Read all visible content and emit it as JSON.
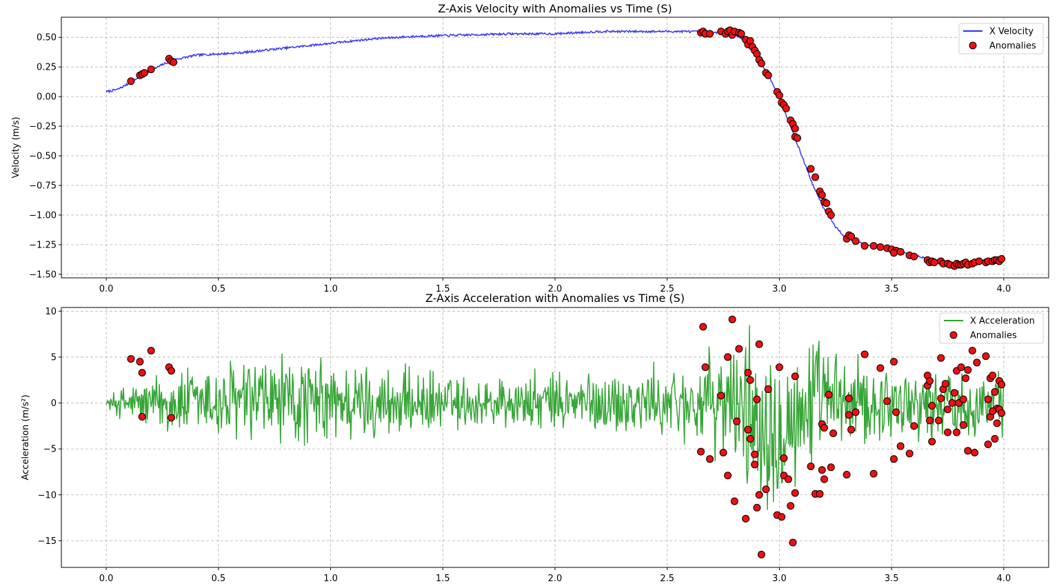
{
  "chart_data": [
    {
      "type": "line",
      "title": "Z-Axis Velocity with Anomalies vs Time (S)",
      "xlabel": "",
      "ylabel": "Velocity (m/s)",
      "xlim": [
        -0.2,
        4.2
      ],
      "ylim": [
        -1.53,
        0.67
      ],
      "x_ticks": [
        "0.0",
        "0.5",
        "1.0",
        "1.5",
        "2.0",
        "2.5",
        "3.0",
        "3.5",
        "4.0"
      ],
      "y_ticks": [
        "0.50",
        "0.25",
        "0.00",
        "−0.25",
        "−0.50",
        "−0.75",
        "−1.00",
        "−1.25",
        "−1.50"
      ],
      "grid": true,
      "legend_position": "top-right",
      "series": [
        {
          "name": "X Velocity",
          "color": "#2b2bee",
          "points": [
            [
              0.0,
              0.04
            ],
            [
              0.05,
              0.06
            ],
            [
              0.1,
              0.11
            ],
            [
              0.15,
              0.17
            ],
            [
              0.2,
              0.22
            ],
            [
              0.25,
              0.27
            ],
            [
              0.3,
              0.31
            ],
            [
              0.4,
              0.35
            ],
            [
              0.5,
              0.36
            ],
            [
              0.6,
              0.37
            ],
            [
              0.7,
              0.39
            ],
            [
              0.8,
              0.41
            ],
            [
              0.9,
              0.43
            ],
            [
              1.0,
              0.45
            ],
            [
              1.2,
              0.49
            ],
            [
              1.4,
              0.51
            ],
            [
              1.6,
              0.52
            ],
            [
              1.8,
              0.53
            ],
            [
              2.0,
              0.53
            ],
            [
              2.2,
              0.55
            ],
            [
              2.4,
              0.55
            ],
            [
              2.6,
              0.55
            ],
            [
              2.7,
              0.54
            ],
            [
              2.8,
              0.53
            ],
            [
              2.85,
              0.47
            ],
            [
              2.9,
              0.35
            ],
            [
              2.95,
              0.18
            ],
            [
              3.0,
              0.0
            ],
            [
              3.05,
              -0.25
            ],
            [
              3.1,
              -0.5
            ],
            [
              3.15,
              -0.75
            ],
            [
              3.2,
              -0.95
            ],
            [
              3.25,
              -1.1
            ],
            [
              3.3,
              -1.2
            ],
            [
              3.4,
              -1.26
            ],
            [
              3.5,
              -1.3
            ],
            [
              3.6,
              -1.34
            ],
            [
              3.7,
              -1.38
            ],
            [
              3.8,
              -1.42
            ],
            [
              3.9,
              -1.4
            ],
            [
              4.0,
              -1.37
            ]
          ]
        },
        {
          "name": "Anomalies",
          "color": "#ee1111",
          "points": [
            [
              0.11,
              0.13
            ],
            [
              0.15,
              0.18
            ],
            [
              0.16,
              0.19
            ],
            [
              0.17,
              0.2
            ],
            [
              0.2,
              0.23
            ],
            [
              0.28,
              0.32
            ],
            [
              0.29,
              0.3
            ],
            [
              0.3,
              0.29
            ],
            [
              2.65,
              0.54
            ],
            [
              2.66,
              0.55
            ],
            [
              2.67,
              0.53
            ],
            [
              2.69,
              0.53
            ],
            [
              2.74,
              0.55
            ],
            [
              2.76,
              0.53
            ],
            [
              2.77,
              0.55
            ],
            [
              2.78,
              0.56
            ],
            [
              2.79,
              0.52
            ],
            [
              2.8,
              0.55
            ],
            [
              2.82,
              0.54
            ],
            [
              2.83,
              0.53
            ],
            [
              2.85,
              0.48
            ],
            [
              2.86,
              0.44
            ],
            [
              2.87,
              0.47
            ],
            [
              2.88,
              0.42
            ],
            [
              2.89,
              0.39
            ],
            [
              2.9,
              0.36
            ],
            [
              2.91,
              0.31
            ],
            [
              2.92,
              0.28
            ],
            [
              2.94,
              0.2
            ],
            [
              2.95,
              0.18
            ],
            [
              2.99,
              0.04
            ],
            [
              3.0,
              0.01
            ],
            [
              3.01,
              -0.05
            ],
            [
              3.02,
              -0.07
            ],
            [
              3.03,
              -0.1
            ],
            [
              3.05,
              -0.2
            ],
            [
              3.06,
              -0.23
            ],
            [
              3.07,
              -0.27
            ],
            [
              3.07,
              -0.34
            ],
            [
              3.08,
              -0.35
            ],
            [
              3.14,
              -0.61
            ],
            [
              3.16,
              -0.68
            ],
            [
              3.18,
              -0.8
            ],
            [
              3.19,
              -0.83
            ],
            [
              3.2,
              -0.89
            ],
            [
              3.21,
              -0.9
            ],
            [
              3.22,
              -0.97
            ],
            [
              3.23,
              -1.0
            ],
            [
              3.3,
              -1.2
            ],
            [
              3.31,
              -1.17
            ],
            [
              3.32,
              -1.18
            ],
            [
              3.34,
              -1.22
            ],
            [
              3.38,
              -1.26
            ],
            [
              3.42,
              -1.26
            ],
            [
              3.45,
              -1.27
            ],
            [
              3.48,
              -1.28
            ],
            [
              3.5,
              -1.29
            ],
            [
              3.52,
              -1.3
            ],
            [
              3.54,
              -1.31
            ],
            [
              3.51,
              -1.32
            ],
            [
              3.58,
              -1.34
            ],
            [
              3.6,
              -1.35
            ],
            [
              3.66,
              -1.38
            ],
            [
              3.67,
              -1.4
            ],
            [
              3.68,
              -1.39
            ],
            [
              3.69,
              -1.4
            ],
            [
              3.72,
              -1.39
            ],
            [
              3.73,
              -1.41
            ],
            [
              3.75,
              -1.41
            ],
            [
              3.76,
              -1.42
            ],
            [
              3.78,
              -1.43
            ],
            [
              3.79,
              -1.41
            ],
            [
              3.8,
              -1.42
            ],
            [
              3.81,
              -1.42
            ],
            [
              3.82,
              -1.41
            ],
            [
              3.83,
              -1.4
            ],
            [
              3.84,
              -1.42
            ],
            [
              3.86,
              -1.41
            ],
            [
              3.87,
              -1.4
            ],
            [
              3.89,
              -1.39
            ],
            [
              3.92,
              -1.4
            ],
            [
              3.93,
              -1.39
            ],
            [
              3.95,
              -1.39
            ],
            [
              3.96,
              -1.38
            ],
            [
              3.97,
              -1.38
            ],
            [
              3.98,
              -1.39
            ],
            [
              3.99,
              -1.37
            ]
          ]
        }
      ]
    },
    {
      "type": "line",
      "title": "Z-Axis Acceleration with Anomalies vs Time (S)",
      "xlabel": "",
      "ylabel": "Acceleration (m/s²)",
      "xlim": [
        -0.2,
        4.2
      ],
      "ylim": [
        -17.9,
        10.4
      ],
      "x_ticks": [
        "0.0",
        "0.5",
        "1.0",
        "1.5",
        "2.0",
        "2.5",
        "3.0",
        "3.5",
        "4.0"
      ],
      "y_ticks": [
        "10",
        "5",
        "0",
        "−5",
        "−10",
        "−15"
      ],
      "grid": true,
      "legend_position": "top-right",
      "series": [
        {
          "name": "X Acceleration",
          "color": "#2ca02c",
          "noise": {
            "samples": 1200,
            "x_start": 0.0,
            "x_end": 4.0,
            "typical_amplitude": 3.0,
            "envelope_peaks": [
              [
                0.0,
                0.5
              ],
              [
                0.05,
                2.0
              ],
              [
                0.3,
                4.5
              ],
              [
                0.7,
                6.5
              ],
              [
                1.2,
                5.0
              ],
              [
                1.6,
                3.5
              ],
              [
                2.0,
                4.0
              ],
              [
                2.4,
                4.5
              ],
              [
                2.6,
                5.0
              ],
              [
                2.8,
                8.0
              ],
              [
                2.9,
                12.0
              ],
              [
                3.05,
                10.0
              ],
              [
                3.3,
                6.0
              ],
              [
                3.6,
                4.5
              ],
              [
                4.0,
                4.0
              ]
            ]
          }
        },
        {
          "name": "Anomalies",
          "color": "#ee1111",
          "points": [
            [
              0.11,
              4.8
            ],
            [
              0.15,
              4.5
            ],
            [
              0.16,
              3.3
            ],
            [
              0.16,
              -1.5
            ],
            [
              0.2,
              5.7
            ],
            [
              0.28,
              3.9
            ],
            [
              0.29,
              -1.6
            ],
            [
              0.29,
              3.5
            ],
            [
              2.65,
              -5.3
            ],
            [
              2.66,
              8.3
            ],
            [
              2.67,
              3.9
            ],
            [
              2.69,
              -6.1
            ],
            [
              2.74,
              0.8
            ],
            [
              2.75,
              -5.4
            ],
            [
              2.77,
              5.0
            ],
            [
              2.77,
              -7.9
            ],
            [
              2.79,
              9.1
            ],
            [
              2.8,
              -10.7
            ],
            [
              2.81,
              -2.0
            ],
            [
              2.82,
              5.9
            ],
            [
              2.85,
              -12.6
            ],
            [
              2.86,
              3.3
            ],
            [
              2.86,
              -2.9
            ],
            [
              2.87,
              -3.9
            ],
            [
              2.87,
              2.5
            ],
            [
              2.89,
              -5.6
            ],
            [
              2.89,
              -6.7
            ],
            [
              2.9,
              0.4
            ],
            [
              2.9,
              -11.4
            ],
            [
              2.91,
              -10.0
            ],
            [
              2.91,
              6.4
            ],
            [
              2.92,
              -16.5
            ],
            [
              2.94,
              -9.4
            ],
            [
              2.95,
              1.5
            ],
            [
              2.99,
              -12.2
            ],
            [
              3.0,
              3.9
            ],
            [
              3.01,
              -12.4
            ],
            [
              3.02,
              -6.0
            ],
            [
              3.02,
              -7.9
            ],
            [
              3.04,
              -8.3
            ],
            [
              3.05,
              -11.2
            ],
            [
              3.06,
              -15.2
            ],
            [
              3.07,
              -9.8
            ],
            [
              3.07,
              2.9
            ],
            [
              3.14,
              -6.9
            ],
            [
              3.16,
              -9.9
            ],
            [
              3.18,
              -9.9
            ],
            [
              3.19,
              -7.3
            ],
            [
              3.19,
              -2.3
            ],
            [
              3.2,
              -2.7
            ],
            [
              3.2,
              -8.3
            ],
            [
              3.22,
              0.9
            ],
            [
              3.23,
              -7.0
            ],
            [
              3.24,
              -3.3
            ],
            [
              3.3,
              -7.8
            ],
            [
              3.31,
              0.5
            ],
            [
              3.31,
              -1.3
            ],
            [
              3.32,
              -2.9
            ],
            [
              3.34,
              -1.0
            ],
            [
              3.38,
              5.3
            ],
            [
              3.42,
              -7.7
            ],
            [
              3.45,
              3.8
            ],
            [
              3.48,
              0.2
            ],
            [
              3.51,
              -6.1
            ],
            [
              3.51,
              4.5
            ],
            [
              3.52,
              -1.0
            ],
            [
              3.54,
              -4.7
            ],
            [
              3.58,
              -5.5
            ],
            [
              3.6,
              -2.5
            ],
            [
              3.66,
              1.9
            ],
            [
              3.66,
              3.0
            ],
            [
              3.67,
              2.4
            ],
            [
              3.67,
              -1.9
            ],
            [
              3.68,
              -0.3
            ],
            [
              3.68,
              -4.2
            ],
            [
              3.71,
              -1.9
            ],
            [
              3.72,
              4.9
            ],
            [
              3.72,
              0.5
            ],
            [
              3.73,
              1.5
            ],
            [
              3.74,
              2.1
            ],
            [
              3.75,
              -0.7
            ],
            [
              3.75,
              -3.2
            ],
            [
              3.77,
              0.0
            ],
            [
              3.78,
              1.1
            ],
            [
              3.79,
              3.5
            ],
            [
              3.79,
              -3.2
            ],
            [
              3.8,
              0.0
            ],
            [
              3.81,
              3.9
            ],
            [
              3.82,
              -2.4
            ],
            [
              3.82,
              0.4
            ],
            [
              3.83,
              2.7
            ],
            [
              3.84,
              3.6
            ],
            [
              3.84,
              -5.2
            ],
            [
              3.86,
              5.7
            ],
            [
              3.87,
              -5.4
            ],
            [
              3.88,
              4.4
            ],
            [
              3.92,
              5.1
            ],
            [
              3.93,
              -4.5
            ],
            [
              3.93,
              0.4
            ],
            [
              3.94,
              2.7
            ],
            [
              3.94,
              -1.5
            ],
            [
              3.95,
              3.0
            ],
            [
              3.96,
              1.2
            ],
            [
              3.96,
              -3.9
            ],
            [
              3.97,
              -0.6
            ],
            [
              3.98,
              2.4
            ],
            [
              3.98,
              -0.7
            ],
            [
              3.99,
              -1.1
            ],
            [
              3.99,
              2.0
            ],
            [
              3.97,
              -2.2
            ],
            [
              3.95,
              -0.9
            ]
          ]
        }
      ]
    }
  ]
}
